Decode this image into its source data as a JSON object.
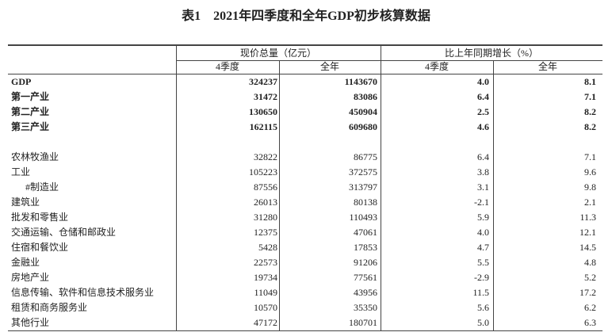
{
  "title": "表1　2021年四季度和全年GDP初步核算数据",
  "table": {
    "header_groups": [
      "现价总量（亿元）",
      "比上年同期增长（%）"
    ],
    "subheaders": [
      "4季度",
      "全年",
      "4季度",
      "全年"
    ],
    "rows": [
      [
        "GDP",
        "324237",
        "1143670",
        "4.0",
        "8.1"
      ],
      [
        "第一产业",
        "31472",
        "83086",
        "6.4",
        "7.1"
      ],
      [
        "第二产业",
        "130650",
        "450904",
        "2.5",
        "8.2"
      ],
      [
        "第三产业",
        "162115",
        "609680",
        "4.6",
        "8.2"
      ],
      [
        "农林牧渔业",
        "32822",
        "86775",
        "6.4",
        "7.1"
      ],
      [
        "工业",
        "105223",
        "372575",
        "3.8",
        "9.6"
      ],
      [
        "#制造业",
        "87556",
        "313797",
        "3.1",
        "9.8"
      ],
      [
        "建筑业",
        "26013",
        "80138",
        "-2.1",
        "2.1"
      ],
      [
        "批发和零售业",
        "31280",
        "110493",
        "5.9",
        "11.3"
      ],
      [
        "交通运输、仓储和邮政业",
        "12375",
        "47061",
        "4.0",
        "12.1"
      ],
      [
        "住宿和餐饮业",
        "5428",
        "17853",
        "4.7",
        "14.5"
      ],
      [
        "金融业",
        "22573",
        "91206",
        "5.5",
        "4.8"
      ],
      [
        "房地产业",
        "19734",
        "77561",
        "-2.9",
        "5.2"
      ],
      [
        "信息传输、软件和信息技术服务业",
        "11049",
        "43956",
        "11.5",
        "17.2"
      ],
      [
        "租赁和商务服务业",
        "10570",
        "35350",
        "5.6",
        "6.2"
      ],
      [
        "其他行业",
        "47172",
        "180701",
        "5.0",
        "6.3"
      ]
    ]
  }
}
